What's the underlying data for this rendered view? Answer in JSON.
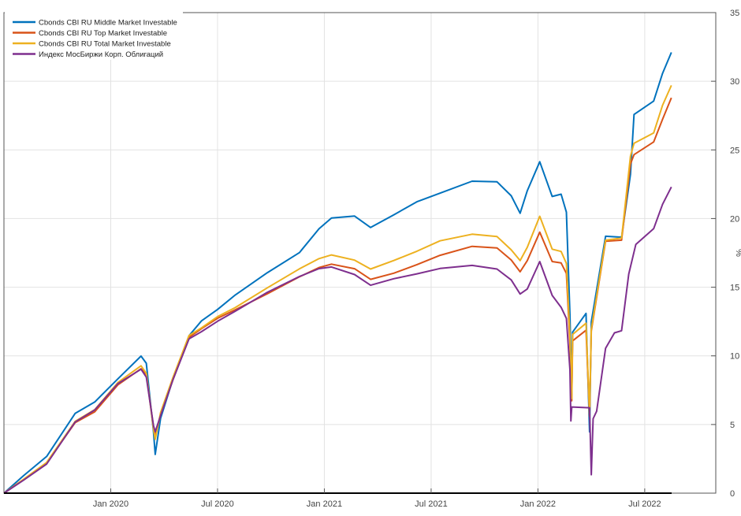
{
  "chart_data": {
    "type": "line",
    "title": "",
    "xlabel": "",
    "ylabel": "%",
    "x_unit": "months since Jul 2019",
    "xlim": [
      0,
      40
    ],
    "ylim": [
      0,
      35
    ],
    "grid": true,
    "legend_position": "top-left",
    "x_ticks": [
      {
        "label": "Jan 2020",
        "value": 6
      },
      {
        "label": "Jul 2020",
        "value": 12
      },
      {
        "label": "Jan 2021",
        "value": 18
      },
      {
        "label": "Jul 2021",
        "value": 24
      },
      {
        "label": "Jan 2022",
        "value": 30
      },
      {
        "label": "Jul 2022",
        "value": 36
      }
    ],
    "y_ticks": [
      "0",
      "5",
      "10",
      "15",
      "20",
      "25",
      "30",
      "35"
    ],
    "series": [
      {
        "name": "Cbonds CBI RU Middle Market Investable",
        "color": "#0072BD",
        "x": [
          0,
          1.1,
          2.4,
          4,
          5.1,
          6.4,
          7.7,
          8,
          8.4,
          8.5,
          8.8,
          9.5,
          10.4,
          11.1,
          12,
          13,
          14.8,
          16.6,
          17.7,
          18.4,
          19.7,
          20.6,
          21.9,
          23.2,
          24.5,
          26.3,
          27.7,
          28.5,
          29,
          29.4,
          30.1,
          30.8,
          31.3,
          31.6,
          31.8,
          31.9,
          31.95,
          32.7,
          32.9,
          33,
          33.8,
          34.7,
          35.2,
          35.4,
          36.5,
          37,
          37.5
        ],
        "y": [
          0,
          1.2,
          2.6,
          5.8,
          6.7,
          8.4,
          10,
          9.4,
          4.4,
          2.8,
          5.5,
          8.4,
          11.5,
          12.5,
          13.3,
          14.4,
          16.1,
          17.6,
          19.3,
          20,
          20.1,
          19.3,
          20.3,
          21.3,
          21.9,
          22.7,
          22.6,
          21.6,
          20.4,
          22.1,
          24.2,
          21.6,
          21.7,
          20.4,
          13,
          7.2,
          11.8,
          13.1,
          4.4,
          12.4,
          18.7,
          18.7,
          23.3,
          27.6,
          28.5,
          30.5,
          32.1
        ]
      },
      {
        "name": "Cbonds CBI RU Top Market Investable",
        "color": "#D95319",
        "x": [
          0,
          1.1,
          2.4,
          4,
          5.1,
          6.4,
          7.7,
          8,
          8.4,
          8.5,
          8.8,
          9.5,
          10.4,
          11.1,
          12,
          13,
          14.8,
          16.6,
          17.7,
          18.4,
          19.7,
          20.6,
          21.9,
          23.2,
          24.5,
          26.3,
          27.7,
          28.5,
          29,
          29.4,
          30.1,
          30.8,
          31.3,
          31.6,
          31.8,
          31.9,
          31.95,
          32.7,
          32.9,
          33,
          33.8,
          34.7,
          35.2,
          35.4,
          36.5,
          37,
          37.5
        ],
        "y": [
          0,
          0.9,
          2.2,
          5.2,
          6,
          7.9,
          9,
          8.6,
          4.8,
          4.2,
          5.8,
          8.3,
          11.3,
          11.9,
          12.7,
          13.4,
          14.6,
          15.8,
          16.4,
          16.6,
          16.3,
          15.6,
          16.1,
          16.7,
          17.3,
          17.9,
          17.8,
          17.0,
          16.2,
          17.0,
          19.0,
          16.8,
          16.7,
          16.0,
          11,
          6.8,
          11.1,
          11.8,
          5.5,
          11.8,
          18.4,
          18.5,
          24.0,
          24.6,
          25.5,
          27.2,
          28.8
        ]
      },
      {
        "name": "Cbonds CBI RU Total Market Investable",
        "color": "#EDB120",
        "x": [
          0,
          1.1,
          2.4,
          4,
          5.1,
          6.4,
          7.7,
          8,
          8.4,
          8.5,
          8.8,
          9.5,
          10.4,
          11.1,
          12,
          13,
          14.8,
          16.6,
          17.7,
          18.4,
          19.7,
          20.6,
          21.9,
          23.2,
          24.5,
          26.3,
          27.7,
          28.5,
          29,
          29.4,
          30.1,
          30.8,
          31.3,
          31.6,
          31.8,
          31.9,
          31.95,
          32.7,
          32.9,
          33,
          33.8,
          34.7,
          35.2,
          35.4,
          36.5,
          37,
          37.5
        ],
        "y": [
          0,
          1.0,
          2.3,
          5.3,
          6.1,
          8.0,
          9.2,
          8.7,
          4.7,
          4.0,
          5.9,
          8.4,
          11.4,
          12.0,
          12.9,
          13.6,
          15.0,
          16.3,
          17.0,
          17.3,
          17.0,
          16.4,
          17.0,
          17.6,
          18.3,
          18.8,
          18.7,
          17.8,
          17.0,
          17.9,
          20.1,
          17.7,
          17.6,
          16.8,
          11.5,
          6.9,
          11.5,
          12.3,
          5.8,
          12.0,
          18.5,
          18.6,
          24.5,
          25.4,
          26.2,
          28.3,
          29.7
        ]
      },
      {
        "name": "Индекс МосБиржи Корп. Облигаций",
        "color": "#7E2F8E",
        "x": [
          0,
          1.1,
          2.4,
          4,
          5.1,
          6.4,
          7.7,
          8,
          8.4,
          8.5,
          8.8,
          9.5,
          10.4,
          11.1,
          12,
          13,
          14.8,
          16.6,
          17.7,
          18.4,
          19.7,
          20.6,
          21.9,
          23.2,
          24.5,
          26.3,
          27.7,
          28.5,
          29,
          29.4,
          30.1,
          30.8,
          31.3,
          31.6,
          31.8,
          31.85,
          31.9,
          32.9,
          33,
          33.1,
          33.3,
          33.8,
          34.3,
          34.7,
          35.1,
          35.5,
          36.5,
          37,
          37.5
        ],
        "y": [
          0,
          1.0,
          2.2,
          5.2,
          6.0,
          7.9,
          9.0,
          8.5,
          5.0,
          4.5,
          5.6,
          8.2,
          11.2,
          11.8,
          12.6,
          13.3,
          14.6,
          15.7,
          16.3,
          16.5,
          16.0,
          15.2,
          15.6,
          15.9,
          16.3,
          16.6,
          16.4,
          15.6,
          14.5,
          14.8,
          16.8,
          14.4,
          13.6,
          12.8,
          9,
          5.2,
          6.2,
          6.2,
          1.4,
          5.5,
          6.0,
          10.5,
          11.6,
          11.8,
          16.0,
          18.2,
          19.3,
          21.0,
          22.3
        ]
      }
    ]
  }
}
